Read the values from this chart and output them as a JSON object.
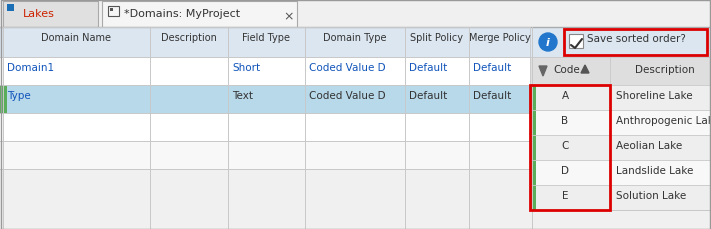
{
  "fig_width": 7.11,
  "fig_height": 2.3,
  "dpi": 100,
  "bg_color": "#f5f5f5",
  "tab1_label": "Lakes",
  "tab2_label": "*Domains: MyProject",
  "tab_bg": "#e8e8e8",
  "tab_active_bg": "#f0f0f0",
  "tab_border": "#aaaaaa",
  "tab_text_red": "#cc2200",
  "tab_text_dark": "#333333",
  "header_bg": "#dce6f1",
  "header_text": "#333333",
  "table_bg": "#ffffff",
  "row_sel_bg": "#b8d9ea",
  "row_alt_bg": "#f0f0f0",
  "green_indicator": "#5aad5a",
  "grid_line": "#c8c8c8",
  "left_headers": [
    "Domain Name",
    "Description",
    "Field Type",
    "Domain Type",
    "Split Policy",
    "Merge Policy"
  ],
  "row1": [
    "Domain1",
    "",
    "Short",
    "Coded Value D",
    "Default",
    "Default"
  ],
  "row2": [
    "Type",
    "",
    "Text",
    "Coded Value D",
    "Default",
    "Default"
  ],
  "codes": [
    "A",
    "B",
    "C",
    "D",
    "E"
  ],
  "descs": [
    "Shoreline Lake",
    "Anthropogenic Lake",
    "Aeolian Lake",
    "Landslide Lake",
    "Solution Lake"
  ],
  "save_label": "Save sorted order?",
  "red_border": "#dd0000",
  "info_blue": "#2277cc",
  "link_blue": "#1155bb",
  "right_header_bg": "#dedede",
  "right_row_bg_a": "#eeeeee",
  "right_row_bg_b": "#f8f8f8"
}
